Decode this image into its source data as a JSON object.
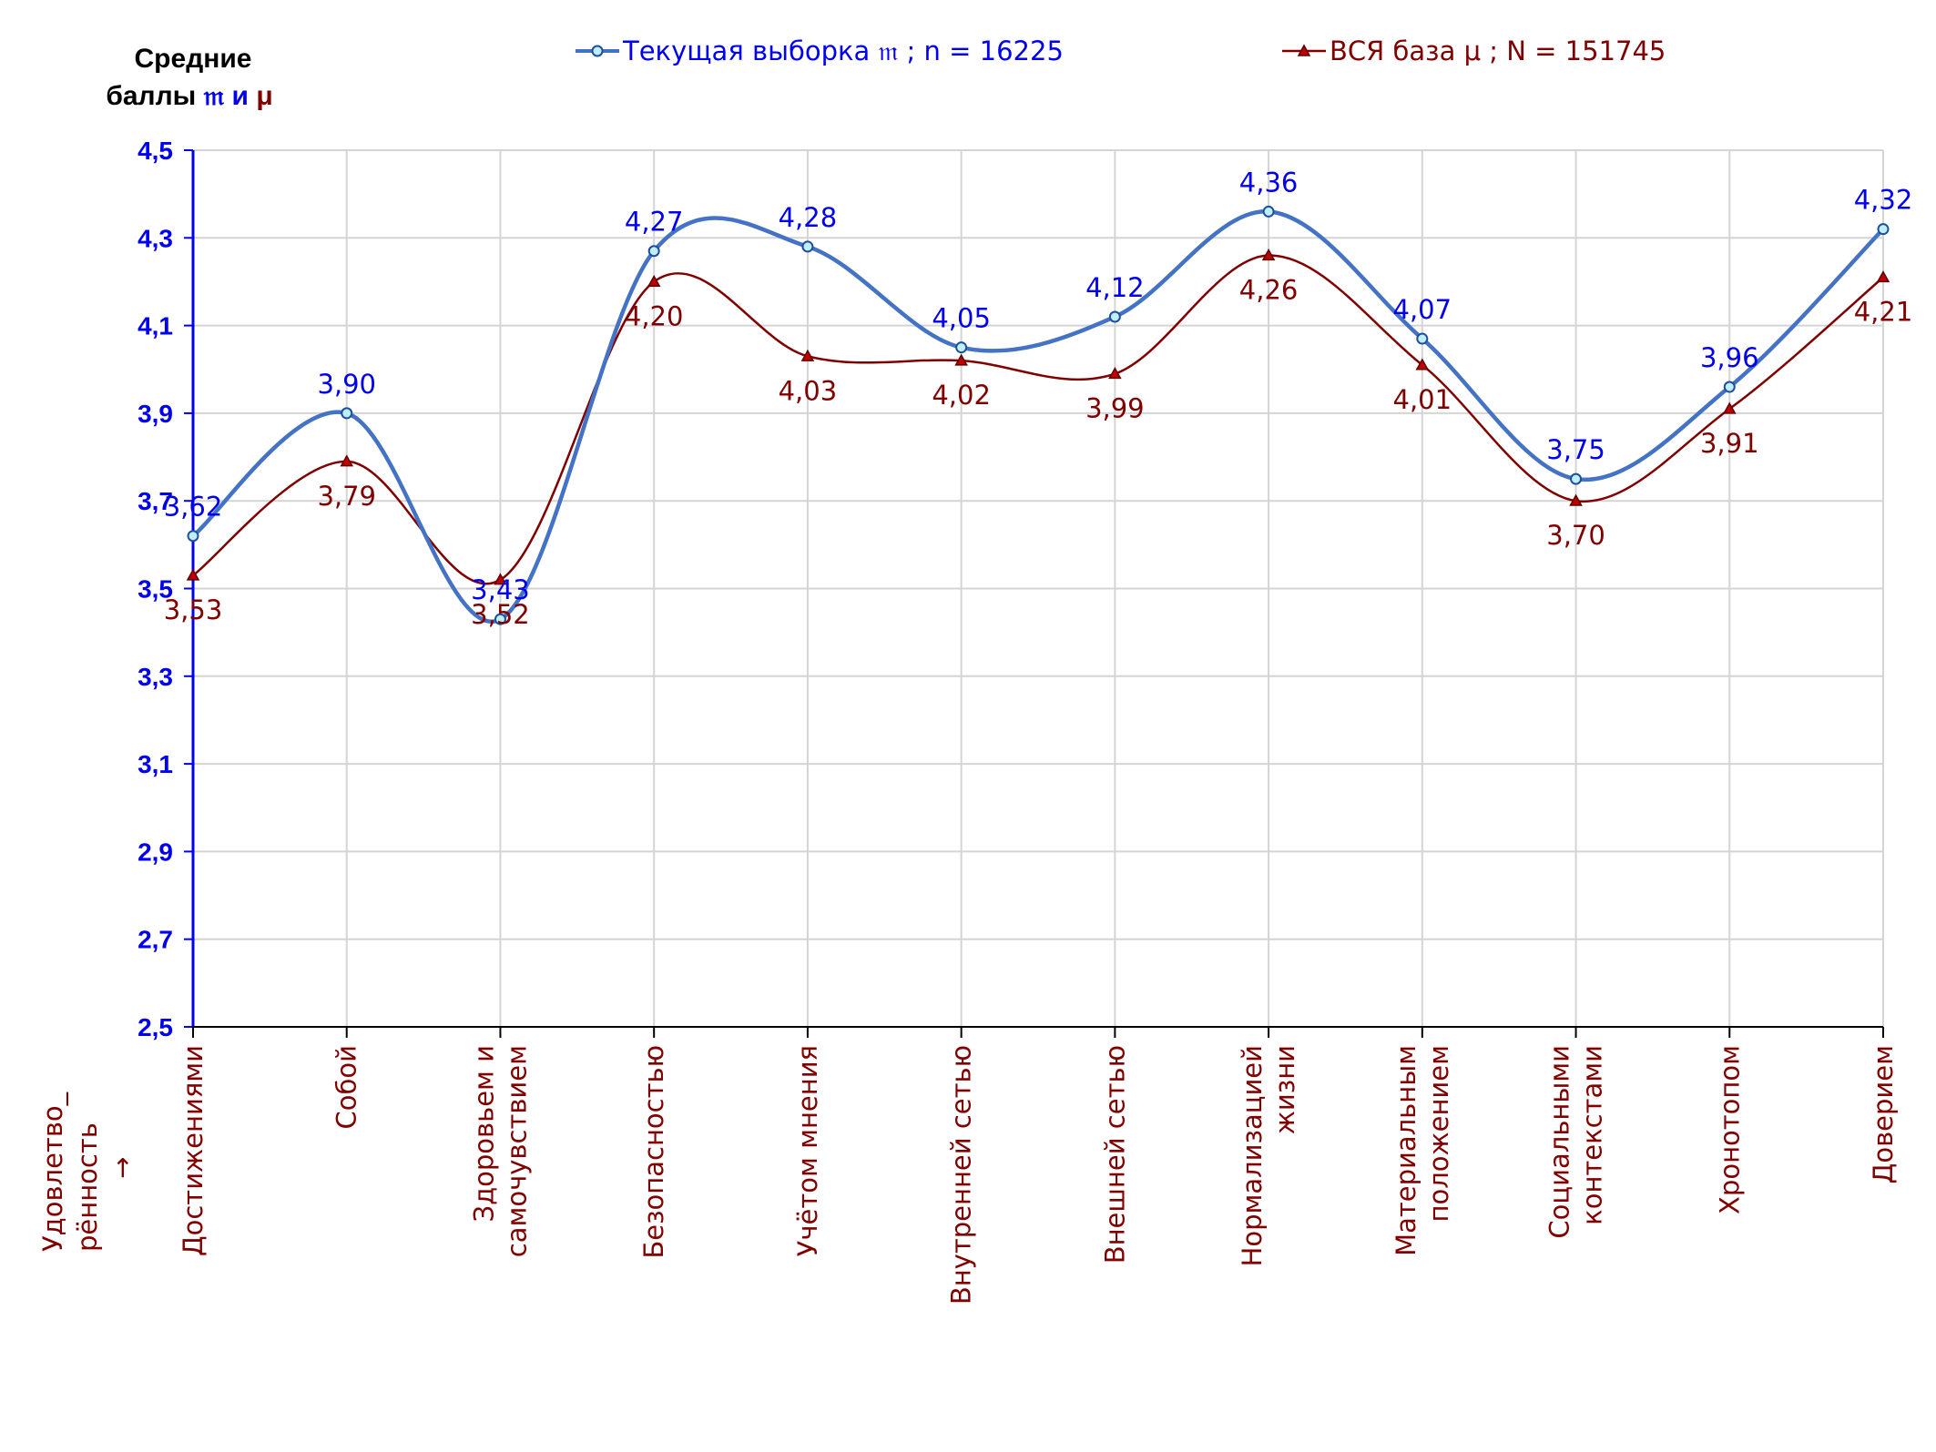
{
  "chart_data": {
    "type": "line",
    "categories": [
      [
        "Достижениями"
      ],
      [
        "Собой"
      ],
      [
        "Здоровьем и",
        "самочувствием"
      ],
      [
        "Безопасностью"
      ],
      [
        "Учётом мнения"
      ],
      [
        "Внутренней сетью"
      ],
      [
        "Внешней сетью"
      ],
      [
        "Нормализацией",
        "жизни"
      ],
      [
        "Материальным",
        "положением"
      ],
      [
        "Социальными",
        "контекстами"
      ],
      [
        "Хронотопом"
      ],
      [
        "Доверием"
      ]
    ],
    "series": [
      {
        "name": "Текущая выборка",
        "symbol": "𝔪",
        "legend_suffix": "; n = 16225",
        "color": "#4472c4",
        "label_color": "#0000ee",
        "marker": "circle",
        "values": [
          3.62,
          3.9,
          3.43,
          4.27,
          4.28,
          4.05,
          4.12,
          4.36,
          4.07,
          3.75,
          3.96,
          4.32
        ],
        "labels": [
          "3,62",
          "3,90",
          "3,43",
          "4,27",
          "4,28",
          "4,05",
          "4,12",
          "4,36",
          "4,07",
          "3,75",
          "3,96",
          "4,32"
        ]
      },
      {
        "name": "ВСЯ база",
        "symbol": "μ",
        "legend_suffix": "; N = 151745",
        "color": "#800000",
        "label_color": "#800000",
        "marker": "triangle",
        "values": [
          3.53,
          3.79,
          3.52,
          4.2,
          4.03,
          4.02,
          3.99,
          4.26,
          4.01,
          3.7,
          3.91,
          4.21
        ],
        "labels": [
          "3,53",
          "3,79",
          "3,52",
          "4,20",
          "4,03",
          "4,02",
          "3,99",
          "4,26",
          "4,01",
          "3,70",
          "3,91",
          "4,21"
        ]
      }
    ],
    "ylim": [
      2.5,
      4.5
    ],
    "yticks": [
      "2,5",
      "2,7",
      "2,9",
      "3,1",
      "3,3",
      "3,5",
      "3,7",
      "3,9",
      "4,1",
      "4,3",
      "4,5"
    ],
    "ylabel": {
      "line1": "Средние",
      "line2": "баллы",
      "sym1": "𝔪",
      "conj": "и",
      "sym2": "μ"
    },
    "xlabel": [
      "Удовлетво_",
      "рённость",
      "→"
    ],
    "grid": true,
    "legend_position": "top"
  }
}
